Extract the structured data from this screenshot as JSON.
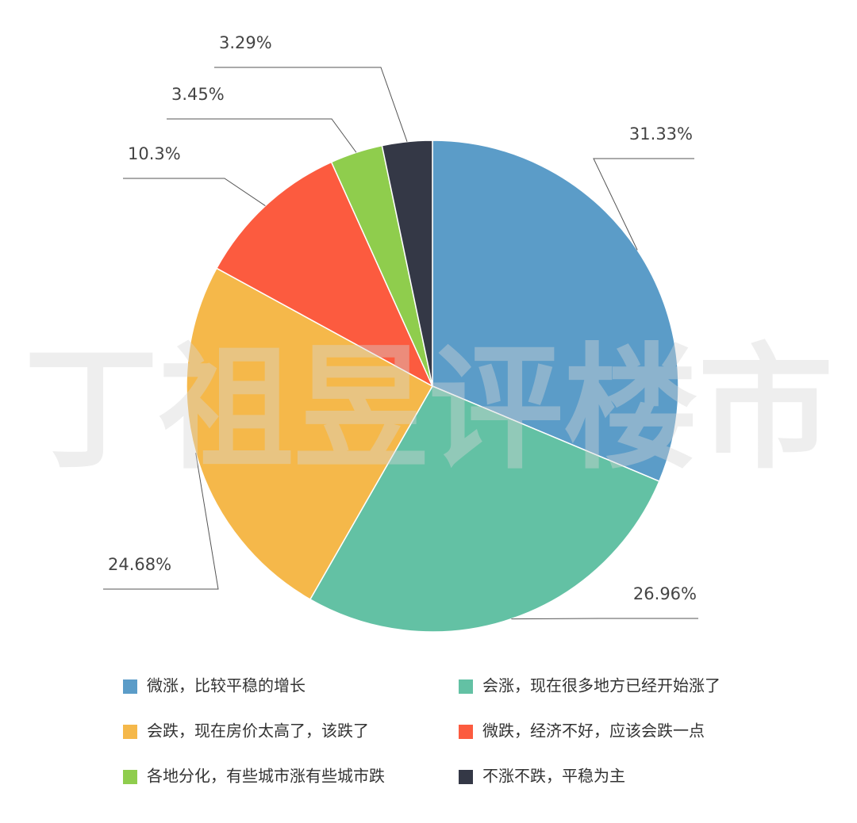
{
  "chart_data": {
    "type": "pie",
    "watermark": "丁祖昱评楼市",
    "categories": [
      "微涨，比较平稳的增长",
      "会涨，现在很多地方已经开始涨了",
      "会跌，现在房价太高了，该跌了",
      "微跌，经济不好，应该会跌一点",
      "各地分化，有些城市涨有些城市跌",
      "不涨不跌，平稳为主"
    ],
    "values": [
      31.33,
      26.96,
      24.68,
      10.3,
      3.45,
      3.29
    ],
    "value_labels": [
      "31.33%",
      "26.96%",
      "24.68%",
      "10.3%",
      "3.45%",
      "3.29%"
    ],
    "colors": [
      "#5b9cc8",
      "#63c1a4",
      "#f5b84a",
      "#fc5b3f",
      "#8fcd4d",
      "#343846"
    ]
  }
}
